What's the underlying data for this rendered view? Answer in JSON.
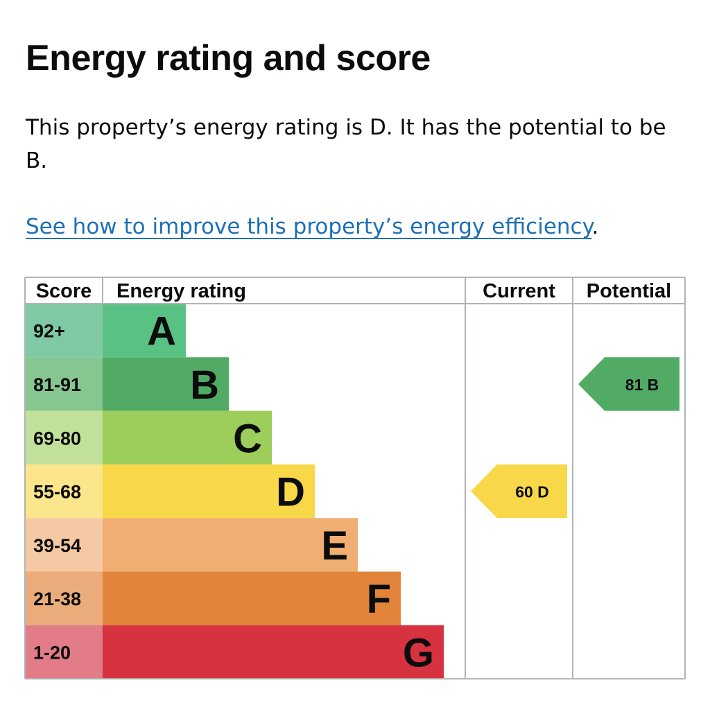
{
  "page": {
    "title": "Energy rating and score",
    "summary": "This property’s energy rating is D. It has the potential to be B.",
    "link_text": "See how to improve this property’s energy efficiency",
    "link_suffix": "."
  },
  "chart_data": {
    "type": "bar",
    "headers": {
      "score": "Score",
      "rating": "Energy rating",
      "current": "Current",
      "potential": "Potential"
    },
    "bands": [
      {
        "letter": "A",
        "range": "92+",
        "min": 92,
        "max": 100,
        "color": "#5ac185",
        "score_bg": "#7fc9a4"
      },
      {
        "letter": "B",
        "range": "81-91",
        "min": 81,
        "max": 91,
        "color": "#51ab64",
        "score_bg": "#86c690"
      },
      {
        "letter": "C",
        "range": "69-80",
        "min": 69,
        "max": 80,
        "color": "#9dcd5a",
        "score_bg": "#c1e09a"
      },
      {
        "letter": "D",
        "range": "55-68",
        "min": 55,
        "max": 68,
        "color": "#f8d849",
        "score_bg": "#fbe68b"
      },
      {
        "letter": "E",
        "range": "39-54",
        "min": 39,
        "max": 54,
        "color": "#f0ae73",
        "score_bg": "#f5c9a3"
      },
      {
        "letter": "F",
        "range": "21-38",
        "min": 21,
        "max": 38,
        "color": "#e2853b",
        "score_bg": "#ebac7c"
      },
      {
        "letter": "G",
        "range": "1-20",
        "min": 1,
        "max": 20,
        "color": "#d6323f",
        "score_bg": "#e27c88"
      }
    ],
    "current": {
      "score": 60,
      "letter": "D",
      "label": "60  D"
    },
    "potential": {
      "score": 81,
      "letter": "B",
      "label": "81  B"
    }
  }
}
